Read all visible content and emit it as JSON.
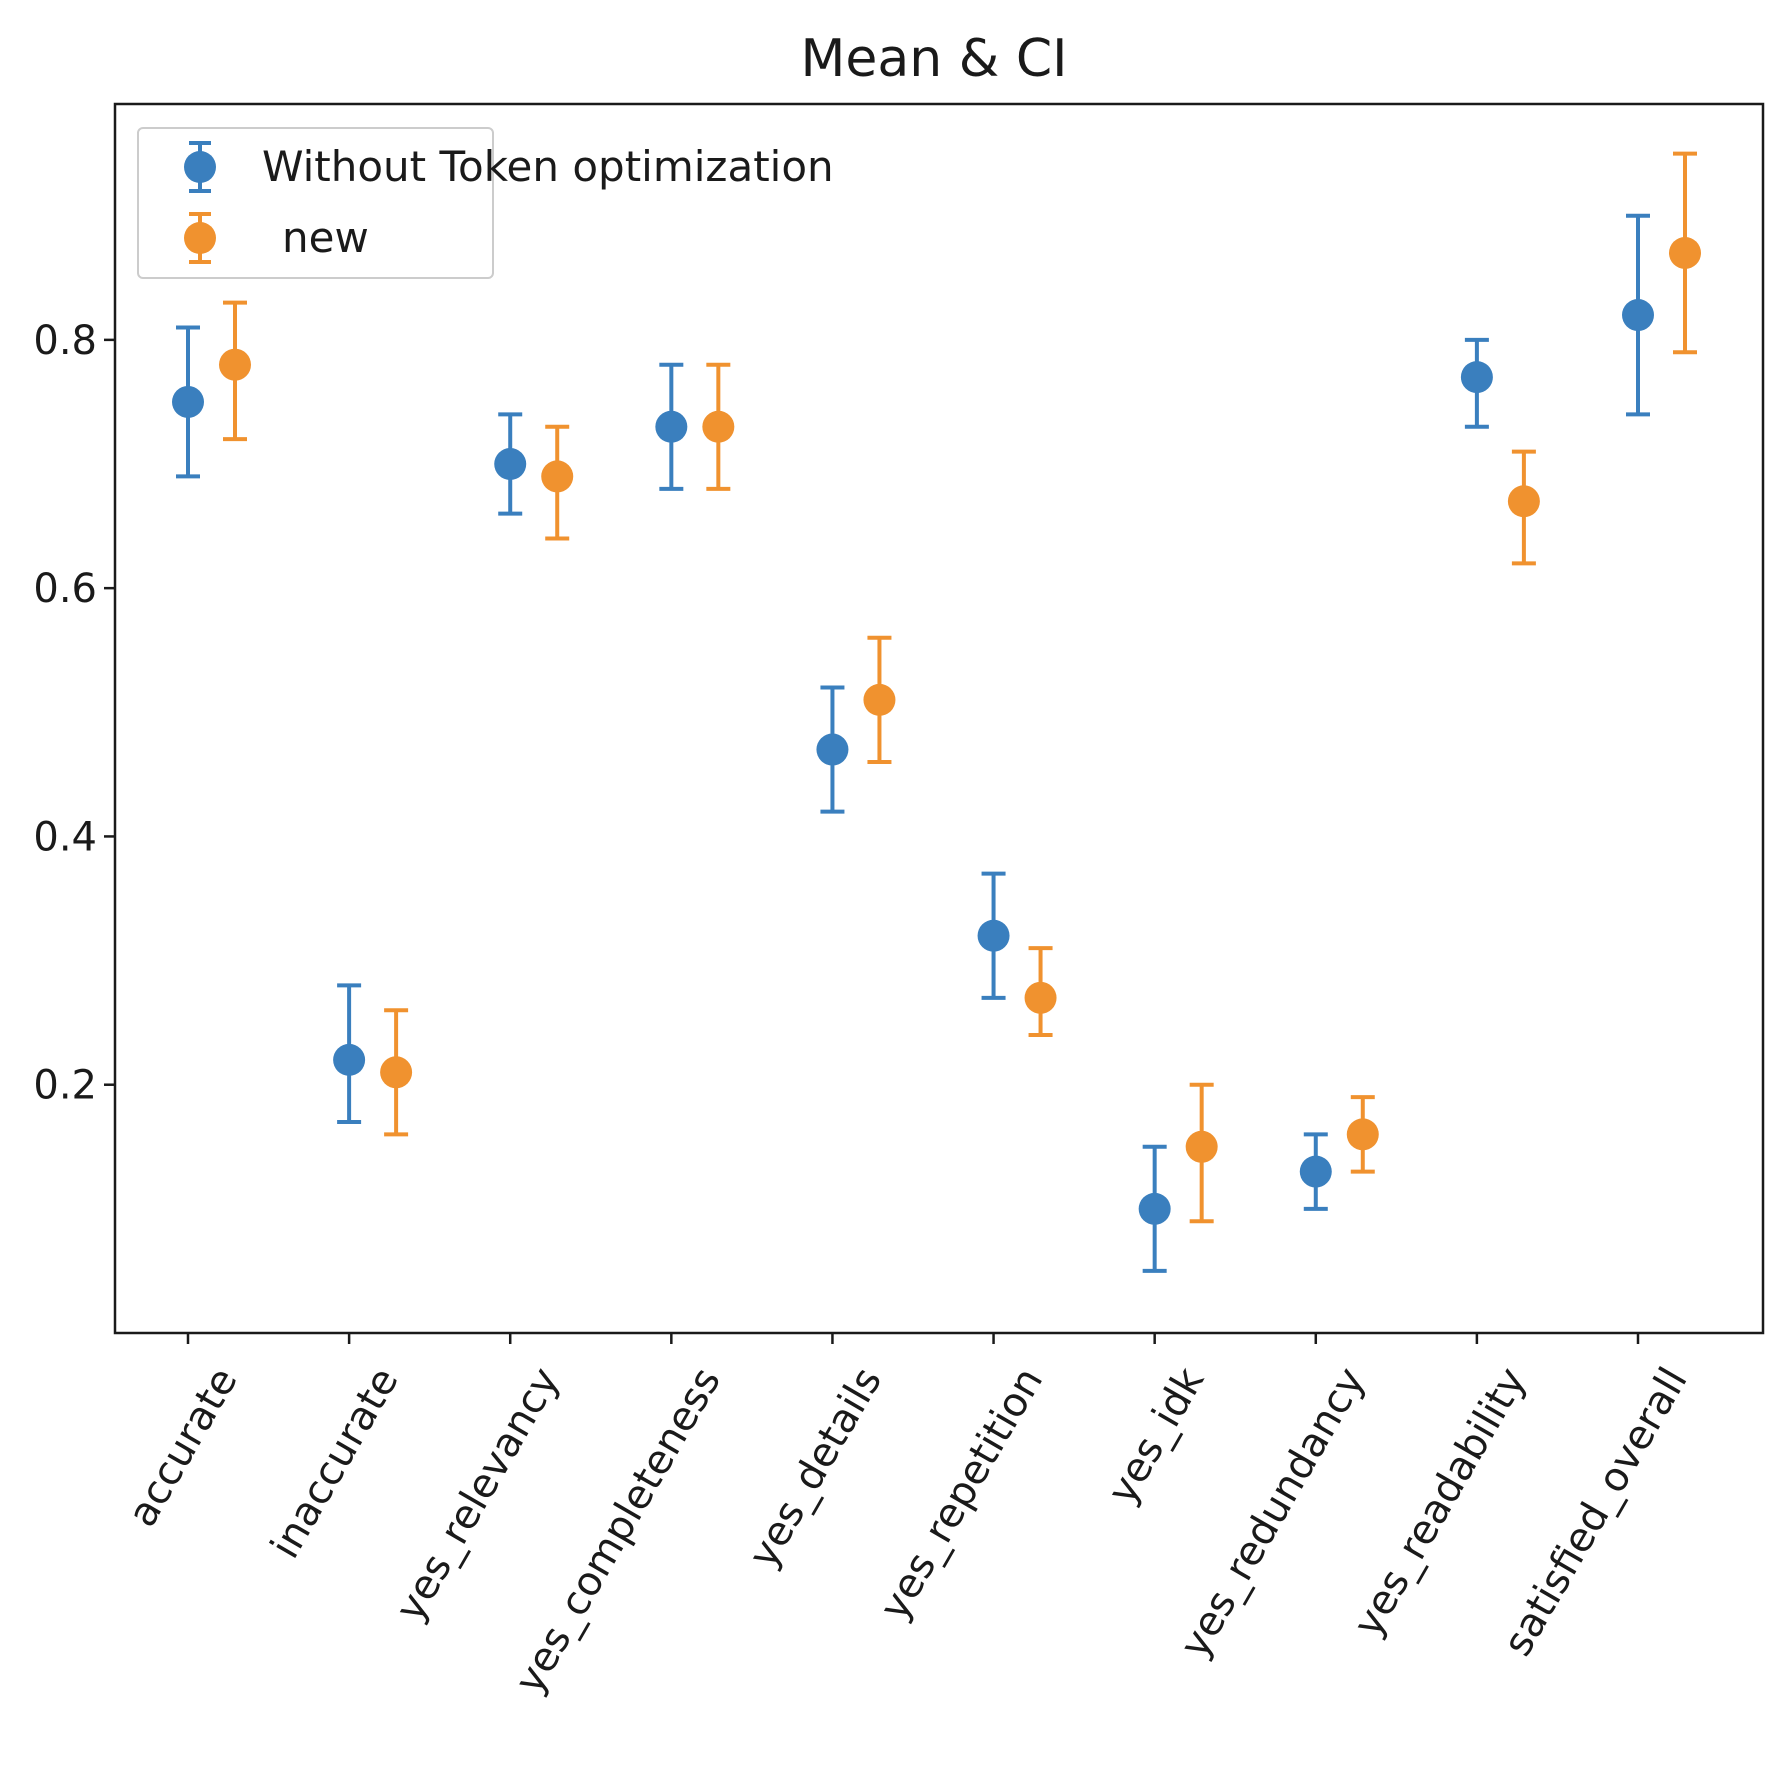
{
  "chart_data": {
    "type": "scatter",
    "title": "Mean & CI",
    "xlabel": "",
    "ylabel": "",
    "categories": [
      "accurate",
      "inaccurate",
      "yes_relevancy",
      "yes_completeness",
      "yes_details",
      "yes_repetition",
      "yes_idk",
      "yes_redundancy",
      "yes_readability",
      "satisfied_overall"
    ],
    "ylim": [
      0.0,
      0.99
    ],
    "yticks": [
      0.2,
      0.4,
      0.6,
      0.8
    ],
    "ytick_labels": [
      "0.2",
      "0.4",
      "0.6",
      "0.8"
    ],
    "grid": false,
    "legend_position": "top-left",
    "series": [
      {
        "name": "Without Token optimization",
        "color": "#3a7fbe",
        "values": [
          0.75,
          0.22,
          0.7,
          0.73,
          0.47,
          0.32,
          0.1,
          0.13,
          0.77,
          0.82
        ],
        "ci_low": [
          0.69,
          0.17,
          0.66,
          0.68,
          0.42,
          0.27,
          0.05,
          0.1,
          0.73,
          0.74
        ],
        "ci_high": [
          0.81,
          0.28,
          0.74,
          0.78,
          0.52,
          0.37,
          0.15,
          0.16,
          0.8,
          0.9
        ]
      },
      {
        "name": "new",
        "color": "#f0922f",
        "values": [
          0.78,
          0.21,
          0.69,
          0.73,
          0.51,
          0.27,
          0.15,
          0.16,
          0.67,
          0.87
        ],
        "ci_low": [
          0.72,
          0.16,
          0.64,
          0.68,
          0.46,
          0.24,
          0.09,
          0.13,
          0.62,
          0.79
        ],
        "ci_high": [
          0.83,
          0.26,
          0.73,
          0.78,
          0.56,
          0.31,
          0.2,
          0.19,
          0.71,
          0.95
        ]
      }
    ]
  }
}
